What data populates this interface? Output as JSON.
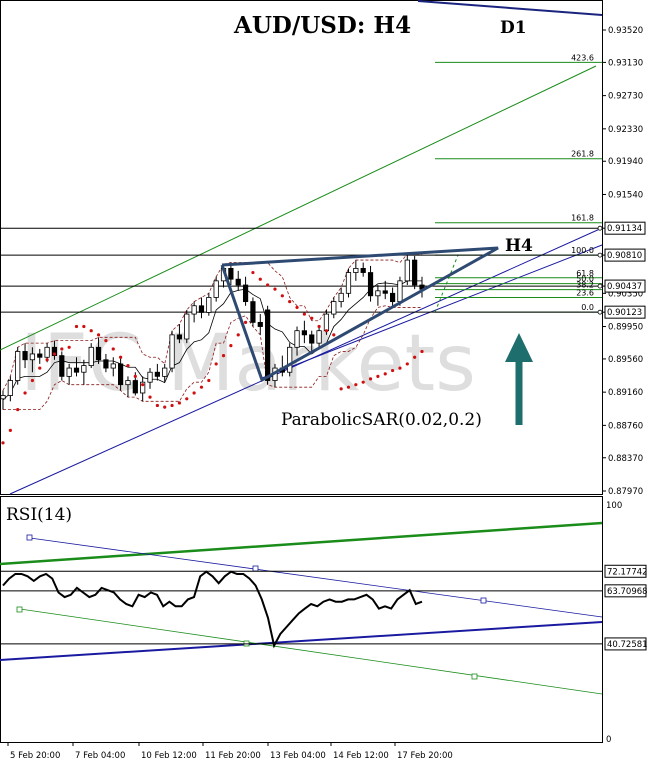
{
  "chart_data": {
    "type": "candlestick",
    "title": "AUD/USD: H4",
    "watermark": "IFC Markets",
    "timeframe_labels": {
      "d1": "D1",
      "h4": "H4"
    },
    "x_tick_labels": [
      "5 Feb 20:00",
      "7 Feb 04:00",
      "10 Feb 12:00",
      "11 Feb 20:00",
      "13 Feb 04:00",
      "14 Feb 12:00",
      "17 Feb 20:00"
    ],
    "price_axis": {
      "ticks": [
        "0.93520",
        "0.93130",
        "0.92730",
        "0.92330",
        "0.91940",
        "0.91540",
        "0.91134",
        "0.90810",
        "0.90437",
        "0.90350",
        "0.90123",
        "0.89950",
        "0.89560",
        "0.89160",
        "0.88760",
        "0.88370",
        "0.87970"
      ],
      "ylim": [
        0.8785,
        0.9363
      ]
    },
    "highlighted_levels": [
      {
        "value": 0.91134,
        "label": "0.91134"
      },
      {
        "value": 0.9081,
        "label": "0.90810"
      },
      {
        "value": 0.90437,
        "label": "0.90437"
      },
      {
        "value": 0.90123,
        "label": "0.90123"
      }
    ],
    "fibonacci_levels": [
      {
        "label": "423.6",
        "value": 0.9313
      },
      {
        "label": "261.8",
        "value": 0.9197
      },
      {
        "label": "161.8",
        "value": 0.912
      },
      {
        "label": "100.0",
        "value": 0.9081
      },
      {
        "label": "61.8",
        "value": 0.90537
      },
      {
        "label": "50.0",
        "value": 0.90466
      },
      {
        "label": "38.2",
        "value": 0.90395
      },
      {
        "label": "23.6",
        "value": 0.903
      },
      {
        "label": "0.0",
        "value": 0.90123
      }
    ],
    "indicator_label": "ParabolicSAR(0.02,0.2)",
    "candles": [
      {
        "o": 0.8908,
        "h": 0.8918,
        "l": 0.8895,
        "c": 0.8912
      },
      {
        "o": 0.8912,
        "h": 0.8935,
        "l": 0.8905,
        "c": 0.893
      },
      {
        "o": 0.893,
        "h": 0.897,
        "l": 0.8925,
        "c": 0.8965
      },
      {
        "o": 0.8965,
        "h": 0.8975,
        "l": 0.8945,
        "c": 0.8955
      },
      {
        "o": 0.8955,
        "h": 0.897,
        "l": 0.894,
        "c": 0.8962
      },
      {
        "o": 0.8962,
        "h": 0.8968,
        "l": 0.895,
        "c": 0.8958
      },
      {
        "o": 0.8958,
        "h": 0.8975,
        "l": 0.8952,
        "c": 0.897
      },
      {
        "o": 0.897,
        "h": 0.8978,
        "l": 0.8955,
        "c": 0.896
      },
      {
        "o": 0.896,
        "h": 0.8965,
        "l": 0.893,
        "c": 0.8935
      },
      {
        "o": 0.8935,
        "h": 0.895,
        "l": 0.8925,
        "c": 0.8945
      },
      {
        "o": 0.8945,
        "h": 0.8958,
        "l": 0.8935,
        "c": 0.894
      },
      {
        "o": 0.894,
        "h": 0.8955,
        "l": 0.8925,
        "c": 0.8948
      },
      {
        "o": 0.8948,
        "h": 0.8975,
        "l": 0.8945,
        "c": 0.897
      },
      {
        "o": 0.897,
        "h": 0.8982,
        "l": 0.895,
        "c": 0.8955
      },
      {
        "o": 0.8955,
        "h": 0.8962,
        "l": 0.894,
        "c": 0.8945
      },
      {
        "o": 0.8945,
        "h": 0.8958,
        "l": 0.8935,
        "c": 0.895
      },
      {
        "o": 0.895,
        "h": 0.8958,
        "l": 0.8918,
        "c": 0.8925
      },
      {
        "o": 0.8925,
        "h": 0.8935,
        "l": 0.891,
        "c": 0.893
      },
      {
        "o": 0.893,
        "h": 0.894,
        "l": 0.8912,
        "c": 0.8915
      },
      {
        "o": 0.8915,
        "h": 0.8935,
        "l": 0.8905,
        "c": 0.8928
      },
      {
        "o": 0.8928,
        "h": 0.8945,
        "l": 0.892,
        "c": 0.894
      },
      {
        "o": 0.894,
        "h": 0.895,
        "l": 0.893,
        "c": 0.8935
      },
      {
        "o": 0.8935,
        "h": 0.895,
        "l": 0.8928,
        "c": 0.8945
      },
      {
        "o": 0.8945,
        "h": 0.899,
        "l": 0.894,
        "c": 0.8985
      },
      {
        "o": 0.8985,
        "h": 0.8998,
        "l": 0.8975,
        "c": 0.898
      },
      {
        "o": 0.898,
        "h": 0.9015,
        "l": 0.8975,
        "c": 0.901
      },
      {
        "o": 0.901,
        "h": 0.9025,
        "l": 0.9,
        "c": 0.902
      },
      {
        "o": 0.902,
        "h": 0.903,
        "l": 0.9005,
        "c": 0.9012
      },
      {
        "o": 0.9012,
        "h": 0.9035,
        "l": 0.9008,
        "c": 0.903
      },
      {
        "o": 0.903,
        "h": 0.9055,
        "l": 0.9025,
        "c": 0.905
      },
      {
        "o": 0.905,
        "h": 0.907,
        "l": 0.9042,
        "c": 0.9065
      },
      {
        "o": 0.9065,
        "h": 0.9072,
        "l": 0.9045,
        "c": 0.9052
      },
      {
        "o": 0.9052,
        "h": 0.9062,
        "l": 0.9038,
        "c": 0.9045
      },
      {
        "o": 0.9045,
        "h": 0.9055,
        "l": 0.902,
        "c": 0.9025
      },
      {
        "o": 0.9025,
        "h": 0.903,
        "l": 0.8995,
        "c": 0.9
      },
      {
        "o": 0.9,
        "h": 0.901,
        "l": 0.8985,
        "c": 0.8995
      },
      {
        "o": 0.9015,
        "h": 0.902,
        "l": 0.8925,
        "c": 0.893
      },
      {
        "o": 0.893,
        "h": 0.895,
        "l": 0.8922,
        "c": 0.8945
      },
      {
        "o": 0.8945,
        "h": 0.896,
        "l": 0.8935,
        "c": 0.894
      },
      {
        "o": 0.894,
        "h": 0.8975,
        "l": 0.8935,
        "c": 0.897
      },
      {
        "o": 0.897,
        "h": 0.8995,
        "l": 0.896,
        "c": 0.899
      },
      {
        "o": 0.899,
        "h": 0.9002,
        "l": 0.8975,
        "c": 0.8985
      },
      {
        "o": 0.8985,
        "h": 0.899,
        "l": 0.8965,
        "c": 0.8975
      },
      {
        "o": 0.8975,
        "h": 0.8995,
        "l": 0.897,
        "c": 0.899
      },
      {
        "o": 0.899,
        "h": 0.9015,
        "l": 0.8985,
        "c": 0.901
      },
      {
        "o": 0.901,
        "h": 0.903,
        "l": 0.9005,
        "c": 0.9025
      },
      {
        "o": 0.9025,
        "h": 0.9042,
        "l": 0.9018,
        "c": 0.9035
      },
      {
        "o": 0.9035,
        "h": 0.9065,
        "l": 0.903,
        "c": 0.906
      },
      {
        "o": 0.906,
        "h": 0.9075,
        "l": 0.905,
        "c": 0.9065
      },
      {
        "o": 0.9065,
        "h": 0.9072,
        "l": 0.9055,
        "c": 0.906
      },
      {
        "o": 0.906,
        "h": 0.9068,
        "l": 0.9025,
        "c": 0.9032
      },
      {
        "o": 0.9032,
        "h": 0.9045,
        "l": 0.902,
        "c": 0.9038
      },
      {
        "o": 0.9038,
        "h": 0.905,
        "l": 0.9028,
        "c": 0.9035
      },
      {
        "o": 0.9035,
        "h": 0.9042,
        "l": 0.9018,
        "c": 0.9025
      },
      {
        "o": 0.9025,
        "h": 0.9055,
        "l": 0.902,
        "c": 0.905
      },
      {
        "o": 0.905,
        "h": 0.9082,
        "l": 0.9045,
        "c": 0.9075
      },
      {
        "o": 0.9075,
        "h": 0.908,
        "l": 0.904,
        "c": 0.9045
      },
      {
        "o": 0.9045,
        "h": 0.9055,
        "l": 0.903,
        "c": 0.904
      }
    ],
    "sar_points": [
      0.8855,
      0.887,
      0.8895,
      0.8915,
      0.893,
      0.8945,
      0.8955,
      0.8962,
      0.8968,
      0.897,
      0.8995,
      0.8995,
      0.899,
      0.8985,
      0.8978,
      0.8968,
      0.8958,
      0.8948,
      0.8935,
      0.8925,
      0.891,
      0.89,
      0.8898,
      0.89,
      0.8903,
      0.8908,
      0.8915,
      0.8922,
      0.893,
      0.895,
      0.896,
      0.8972,
      0.8985,
      0.9,
      0.906,
      0.9052,
      0.9045,
      0.904,
      0.9032,
      0.9025,
      0.9018,
      0.901,
      0.9005,
      0.8995,
      0.899,
      0.8985,
      0.892,
      0.8922,
      0.8925,
      0.8928,
      0.8932,
      0.8935,
      0.8938,
      0.8942,
      0.8945,
      0.895,
      0.8958,
      0.8965
    ],
    "rsi": {
      "label": "RSI(14)",
      "levels": [
        {
          "value": 72.17742,
          "label": "72.17742"
        },
        {
          "value": 63.70968,
          "label": "63.70968"
        },
        {
          "value": 40.72581,
          "label": "40.72581"
        }
      ],
      "y_ticks": [
        "100",
        "0"
      ],
      "ylim": [
        0,
        100
      ],
      "values": [
        66,
        69,
        71,
        71,
        70,
        68,
        70,
        71,
        69,
        63,
        61,
        62,
        65,
        63,
        61,
        62,
        65,
        64,
        63,
        60,
        58,
        57,
        62,
        61,
        63,
        62,
        57,
        59,
        57,
        57,
        60,
        61,
        70,
        72,
        70,
        67,
        70,
        72,
        71,
        71,
        69,
        66,
        60,
        52,
        40,
        45,
        48,
        51,
        54,
        56,
        58,
        57,
        59,
        60,
        59,
        59,
        60,
        60,
        61,
        62,
        60,
        56,
        57,
        56,
        60,
        62,
        64,
        58,
        59
      ]
    }
  }
}
